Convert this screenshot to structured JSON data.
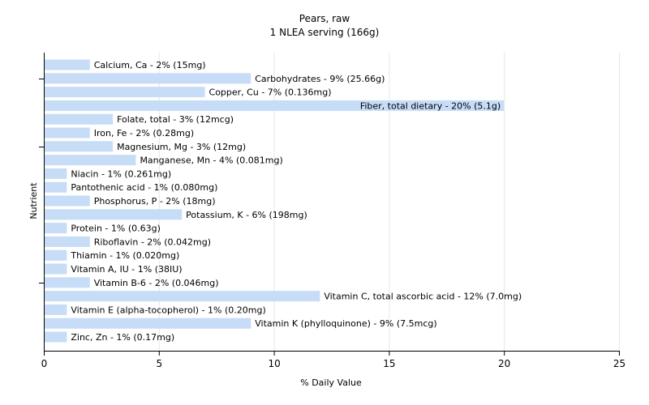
{
  "chart_data": {
    "type": "bar",
    "orientation": "horizontal",
    "title": "Pears, raw",
    "subtitle": "1 NLEA serving (166g)",
    "xlabel": "% Daily Value",
    "ylabel": "Nutrient",
    "xlim": [
      0,
      25
    ],
    "xticks": [
      0,
      5,
      10,
      15,
      20,
      25
    ],
    "grid": true,
    "bar_color": "#c6dcf7",
    "categories": [
      "Calcium, Ca - 2% (15mg)",
      "Carbohydrates - 9% (25.66g)",
      "Copper, Cu - 7% (0.136mg)",
      "Fiber, total dietary - 20% (5.1g)",
      "Folate, total - 3% (12mcg)",
      "Iron, Fe - 2% (0.28mg)",
      "Magnesium, Mg - 3% (12mg)",
      "Manganese, Mn - 4% (0.081mg)",
      "Niacin - 1% (0.261mg)",
      "Pantothenic acid - 1% (0.080mg)",
      "Phosphorus, P - 2% (18mg)",
      "Potassium, K - 6% (198mg)",
      "Protein - 1% (0.63g)",
      "Riboflavin - 2% (0.042mg)",
      "Thiamin - 1% (0.020mg)",
      "Vitamin A, IU - 1% (38IU)",
      "Vitamin B-6 - 2% (0.046mg)",
      "Vitamin C, total ascorbic acid - 12% (7.0mg)",
      "Vitamin E (alpha-tocopherol) - 1% (0.20mg)",
      "Vitamin K (phylloquinone) - 9% (7.5mcg)",
      "Zinc, Zn - 1% (0.17mg)"
    ],
    "values": [
      2,
      9,
      7,
      20,
      3,
      2,
      3,
      4,
      1,
      1,
      2,
      6,
      1,
      2,
      1,
      1,
      2,
      12,
      1,
      9,
      1
    ]
  }
}
